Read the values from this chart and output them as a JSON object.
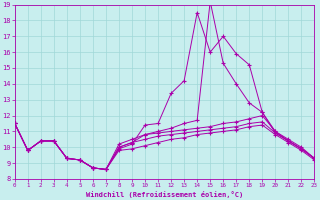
{
  "xlabel": "Windchill (Refroidissement éolien,°C)",
  "bg_color": "#c8eeee",
  "grid_color": "#a0d8d8",
  "line_color": "#aa00aa",
  "xlim": [
    0,
    23
  ],
  "ylim": [
    8,
    19
  ],
  "xticks": [
    0,
    1,
    2,
    3,
    4,
    5,
    6,
    7,
    8,
    9,
    10,
    11,
    12,
    13,
    14,
    15,
    16,
    17,
    18,
    19,
    20,
    21,
    22,
    23
  ],
  "yticks": [
    8,
    9,
    10,
    11,
    12,
    13,
    14,
    15,
    16,
    17,
    18,
    19
  ],
  "lines": [
    {
      "x": [
        0,
        1,
        2,
        3,
        4,
        5,
        6,
        7,
        8,
        9,
        10,
        11,
        12,
        13,
        14,
        15,
        16,
        17,
        18,
        19,
        20,
        21,
        22,
        23
      ],
      "y": [
        11.5,
        9.8,
        10.4,
        10.4,
        9.3,
        9.2,
        8.7,
        8.6,
        9.9,
        10.2,
        11.4,
        11.5,
        13.4,
        14.2,
        18.5,
        16.0,
        17.0,
        15.9,
        15.2,
        12.2,
        10.9,
        10.4,
        9.9,
        9.3
      ]
    },
    {
      "x": [
        0,
        1,
        2,
        3,
        4,
        5,
        6,
        7,
        8,
        9,
        10,
        11,
        12,
        13,
        14,
        15,
        16,
        17,
        18,
        19,
        20,
        21,
        22,
        23
      ],
      "y": [
        11.5,
        9.8,
        10.4,
        10.4,
        9.3,
        9.2,
        8.7,
        8.6,
        10.0,
        10.3,
        10.8,
        11.0,
        11.2,
        11.5,
        11.7,
        19.2,
        15.3,
        14.0,
        12.8,
        12.2,
        11.0,
        10.4,
        9.9,
        9.3
      ]
    },
    {
      "x": [
        0,
        1,
        2,
        3,
        4,
        5,
        6,
        7,
        8,
        9,
        10,
        11,
        12,
        13,
        14,
        15,
        16,
        17,
        18,
        19,
        20,
        21,
        22,
        23
      ],
      "y": [
        11.5,
        9.8,
        10.4,
        10.4,
        9.3,
        9.2,
        8.7,
        8.6,
        10.2,
        10.5,
        10.8,
        10.9,
        11.0,
        11.1,
        11.2,
        11.3,
        11.5,
        11.6,
        11.8,
        12.0,
        11.0,
        10.5,
        10.0,
        9.3
      ]
    },
    {
      "x": [
        0,
        1,
        2,
        3,
        4,
        5,
        6,
        7,
        8,
        9,
        10,
        11,
        12,
        13,
        14,
        15,
        16,
        17,
        18,
        19,
        20,
        21,
        22,
        23
      ],
      "y": [
        11.5,
        9.8,
        10.4,
        10.4,
        9.3,
        9.2,
        8.7,
        8.6,
        10.0,
        10.3,
        10.5,
        10.7,
        10.8,
        10.9,
        11.0,
        11.1,
        11.2,
        11.3,
        11.5,
        11.6,
        10.9,
        10.4,
        9.9,
        9.3
      ]
    },
    {
      "x": [
        0,
        1,
        2,
        3,
        4,
        5,
        6,
        7,
        8,
        9,
        10,
        11,
        12,
        13,
        14,
        15,
        16,
        17,
        18,
        19,
        20,
        21,
        22,
        23
      ],
      "y": [
        11.5,
        9.8,
        10.4,
        10.4,
        9.3,
        9.2,
        8.7,
        8.6,
        9.8,
        9.9,
        10.1,
        10.3,
        10.5,
        10.6,
        10.8,
        10.9,
        11.0,
        11.1,
        11.3,
        11.4,
        10.8,
        10.3,
        9.8,
        9.2
      ]
    }
  ]
}
